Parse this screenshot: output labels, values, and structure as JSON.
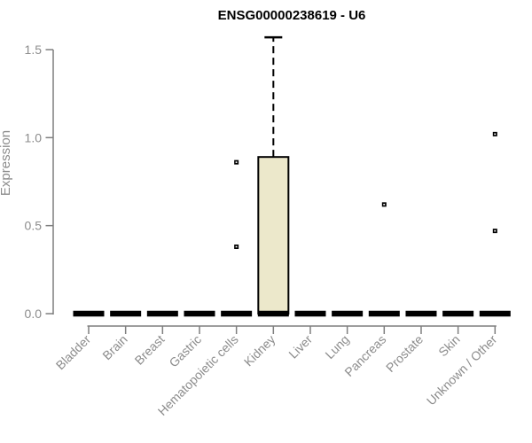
{
  "figure": {
    "background": "#ffffff"
  },
  "chart_data": {
    "type": "boxplot",
    "title": "ENSG00000238619 - U6",
    "ylabel": "Expression",
    "xlabel": "",
    "ylim": [
      0,
      1.6
    ],
    "yticks": [
      0,
      0.5,
      1,
      1.5
    ],
    "ytick_labels": [
      "0.0",
      "0.5",
      "1.0",
      "1.5"
    ],
    "grid": false,
    "legend_position": "none",
    "categories": [
      "Bladder",
      "Brain",
      "Breast",
      "Gastric",
      "Hematopoietic cells",
      "Kidney",
      "Liver",
      "Lung",
      "Pancreas",
      "Prostate",
      "Skin",
      "Unknown / Other"
    ],
    "series": [
      {
        "category": "Bladder",
        "whisker_low": 0,
        "q1": 0,
        "median": 0,
        "q3": 0,
        "whisker_high": 0,
        "outliers": []
      },
      {
        "category": "Brain",
        "whisker_low": 0,
        "q1": 0,
        "median": 0,
        "q3": 0,
        "whisker_high": 0,
        "outliers": []
      },
      {
        "category": "Breast",
        "whisker_low": 0,
        "q1": 0,
        "median": 0,
        "q3": 0,
        "whisker_high": 0,
        "outliers": []
      },
      {
        "category": "Gastric",
        "whisker_low": 0,
        "q1": 0,
        "median": 0,
        "q3": 0,
        "whisker_high": 0,
        "outliers": []
      },
      {
        "category": "Hematopoietic cells",
        "whisker_low": 0,
        "q1": 0,
        "median": 0,
        "q3": 0,
        "whisker_high": 0,
        "outliers": [
          0.86,
          0.38
        ]
      },
      {
        "category": "Kidney",
        "whisker_low": 0,
        "q1": 0,
        "median": 0,
        "q3": 0.89,
        "whisker_high": 1.57,
        "outliers": []
      },
      {
        "category": "Liver",
        "whisker_low": 0,
        "q1": 0,
        "median": 0,
        "q3": 0,
        "whisker_high": 0,
        "outliers": []
      },
      {
        "category": "Lung",
        "whisker_low": 0,
        "q1": 0,
        "median": 0,
        "q3": 0,
        "whisker_high": 0,
        "outliers": []
      },
      {
        "category": "Pancreas",
        "whisker_low": 0,
        "q1": 0,
        "median": 0,
        "q3": 0,
        "whisker_high": 0,
        "outliers": [
          0.62
        ]
      },
      {
        "category": "Prostate",
        "whisker_low": 0,
        "q1": 0,
        "median": 0,
        "q3": 0,
        "whisker_high": 0,
        "outliers": []
      },
      {
        "category": "Skin",
        "whisker_low": 0,
        "q1": 0,
        "median": 0,
        "q3": 0,
        "whisker_high": 0,
        "outliers": []
      },
      {
        "category": "Unknown / Other",
        "whisker_low": 0,
        "q1": 0,
        "median": 0,
        "q3": 0,
        "whisker_high": 0,
        "outliers": [
          1.02,
          0.47
        ]
      }
    ],
    "colors": {
      "box_fill": "#ECE8CB",
      "box_stroke": "#000000",
      "median": "#000000",
      "whisker": "#000000",
      "outlier": "#000000",
      "axis": "#7F7F7F",
      "tick_text": "#8C8C8C",
      "title_text": "#000000"
    }
  }
}
